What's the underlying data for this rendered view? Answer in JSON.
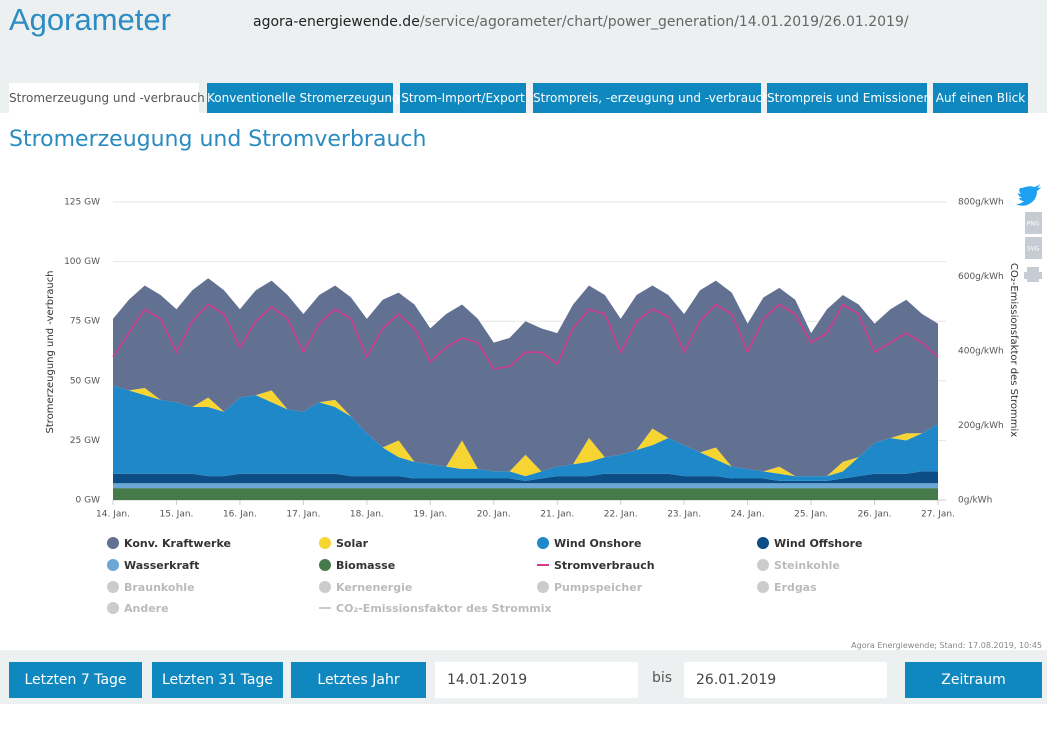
{
  "header": {
    "title": "Agorameter",
    "url_domain": "agora-energiewende.de",
    "url_path": "/service/agorameter/chart/power_generation/14.01.2019/26.01.2019/"
  },
  "tabs": [
    "Stromerzeugung und -verbrauch",
    "Konventionelle Stromerzeugung",
    "Strom-Import/Export",
    "Strompreis, -erzeugung und -verbrauch",
    "Strompreis und Emissionen",
    "Auf einen Blick"
  ],
  "share_icons": [
    "PNG",
    "SVG"
  ],
  "chart_data": {
    "type": "area",
    "stacked": true,
    "title": "Stromerzeugung und Stromverbrauch",
    "ylabel": "Stromerzeugung und -verbrauch",
    "y2label": "CO₂-Emissionsfaktor des Strommix",
    "categories": [
      "14. Jan.",
      null,
      null,
      null,
      "15. Jan.",
      null,
      null,
      null,
      "16. Jan.",
      null,
      null,
      null,
      "17. Jan.",
      null,
      null,
      null,
      "18. Jan.",
      null,
      null,
      null,
      "19. Jan.",
      null,
      null,
      null,
      "20. Jan.",
      null,
      null,
      null,
      "21. Jan.",
      null,
      null,
      null,
      "22. Jan.",
      null,
      null,
      null,
      "23. Jan.",
      null,
      null,
      null,
      "24. Jan.",
      null,
      null,
      null,
      "25. Jan.",
      null,
      null,
      null,
      "26. Jan.",
      null,
      null,
      null,
      "27. Jan."
    ],
    "ylim": [
      0,
      125
    ],
    "yticks": [
      {
        "value": 0,
        "label": "0 GW"
      },
      {
        "value": 25,
        "label": "25 GW"
      },
      {
        "value": 50,
        "label": "50 GW"
      },
      {
        "value": 75,
        "label": "75 GW"
      },
      {
        "value": 100,
        "label": "100 GW"
      },
      {
        "value": 125,
        "label": "125 GW"
      }
    ],
    "y2lim": [
      0,
      800
    ],
    "y2ticks": [
      {
        "value": 0,
        "label": "0g/kWh"
      },
      {
        "value": 200,
        "label": "200g/kWh"
      },
      {
        "value": 400,
        "label": "400g/kWh"
      },
      {
        "value": 600,
        "label": "600g/kWh"
      },
      {
        "value": 800,
        "label": "800g/kWh"
      }
    ],
    "grid": true,
    "series": [
      {
        "name": "Konv. Kraftwerke",
        "color": "#627092",
        "values": [
          28,
          38,
          43,
          44,
          39,
          49,
          50,
          51,
          37,
          44,
          46,
          48,
          41,
          45,
          48,
          50,
          48,
          62,
          62,
          66,
          57,
          64,
          57,
          63,
          54,
          56,
          56,
          60,
          56,
          67,
          64,
          68,
          57,
          65,
          60,
          60,
          55,
          68,
          70,
          73,
          61,
          73,
          75,
          74,
          60,
          70,
          70,
          64,
          50,
          54,
          56,
          50,
          42
        ]
      },
      {
        "name": "Solar",
        "color": "#f6d431",
        "values": [
          0,
          0,
          3,
          0,
          0,
          0,
          4,
          0,
          0,
          0,
          5,
          0,
          0,
          0,
          3,
          0,
          0,
          0,
          7,
          0,
          0,
          0,
          12,
          0,
          0,
          0,
          9,
          0,
          0,
          0,
          10,
          0,
          0,
          0,
          7,
          0,
          0,
          0,
          5,
          0,
          0,
          0,
          3,
          0,
          0,
          0,
          4,
          0,
          0,
          0,
          3,
          0,
          0
        ]
      },
      {
        "name": "Wind Onshore",
        "color": "#1f88c8",
        "values": [
          37,
          35,
          33,
          31,
          30,
          28,
          29,
          27,
          32,
          33,
          30,
          27,
          26,
          30,
          28,
          25,
          18,
          12,
          8,
          7,
          6,
          5,
          4,
          4,
          3,
          3,
          2,
          3,
          4,
          5,
          6,
          7,
          8,
          10,
          12,
          15,
          13,
          10,
          7,
          5,
          4,
          3,
          3,
          2,
          2,
          2,
          3,
          8,
          13,
          15,
          14,
          16,
          20
        ]
      },
      {
        "name": "Wind Offshore",
        "color": "#0b4d84",
        "values": [
          4,
          4,
          4,
          4,
          4,
          4,
          3,
          3,
          4,
          4,
          4,
          4,
          4,
          4,
          4,
          3,
          3,
          3,
          3,
          2,
          2,
          2,
          2,
          2,
          2,
          2,
          1,
          2,
          3,
          3,
          3,
          4,
          4,
          4,
          4,
          4,
          3,
          3,
          3,
          2,
          2,
          2,
          1,
          1,
          1,
          1,
          2,
          3,
          4,
          4,
          4,
          5,
          5
        ]
      },
      {
        "name": "Wasserkraft",
        "color": "#6aa6d6",
        "values": [
          2,
          2,
          2,
          2,
          2,
          2,
          2,
          2,
          2,
          2,
          2,
          2,
          2,
          2,
          2,
          2,
          2,
          2,
          2,
          2,
          2,
          2,
          2,
          2,
          2,
          2,
          2,
          2,
          2,
          2,
          2,
          2,
          2,
          2,
          2,
          2,
          2,
          2,
          2,
          2,
          2,
          2,
          2,
          2,
          2,
          2,
          2,
          2,
          2,
          2,
          2,
          2,
          2
        ]
      },
      {
        "name": "Biomasse",
        "color": "#467a4b",
        "values": [
          5,
          5,
          5,
          5,
          5,
          5,
          5,
          5,
          5,
          5,
          5,
          5,
          5,
          5,
          5,
          5,
          5,
          5,
          5,
          5,
          5,
          5,
          5,
          5,
          5,
          5,
          5,
          5,
          5,
          5,
          5,
          5,
          5,
          5,
          5,
          5,
          5,
          5,
          5,
          5,
          5,
          5,
          5,
          5,
          5,
          5,
          5,
          5,
          5,
          5,
          5,
          5,
          5
        ]
      },
      {
        "name": "Stromverbrauch",
        "color": "#d23c8c",
        "type": "line",
        "values": [
          60,
          70,
          80,
          76,
          62,
          75,
          82,
          78,
          64,
          75,
          81,
          76,
          62,
          74,
          80,
          76,
          60,
          72,
          78,
          72,
          58,
          64,
          68,
          66,
          55,
          56,
          62,
          62,
          57,
          72,
          80,
          78,
          62,
          75,
          80,
          77,
          62,
          75,
          82,
          78,
          62,
          76,
          82,
          78,
          66,
          70,
          82,
          78,
          62,
          66,
          70,
          66,
          60
        ]
      }
    ],
    "inactive_legend": [
      {
        "name": "Steinkohle"
      },
      {
        "name": "Braunkohle"
      },
      {
        "name": "Kernenergie"
      },
      {
        "name": "Pumpspeicher"
      },
      {
        "name": "Erdgas"
      },
      {
        "name": "Andere"
      },
      {
        "name": "CO₂-Emissionsfaktor des Strommix",
        "marker": "line"
      }
    ]
  },
  "source_note": "Agora Energiewende; Stand: 17.08.2019, 10:45",
  "controls": {
    "buttons": [
      "Letzten 7 Tage",
      "Letzten 31 Tage",
      "Letztes Jahr"
    ],
    "from": "14.01.2019",
    "to_label": "bis",
    "to": "26.01.2019",
    "submit": "Zeitraum darstellen"
  }
}
